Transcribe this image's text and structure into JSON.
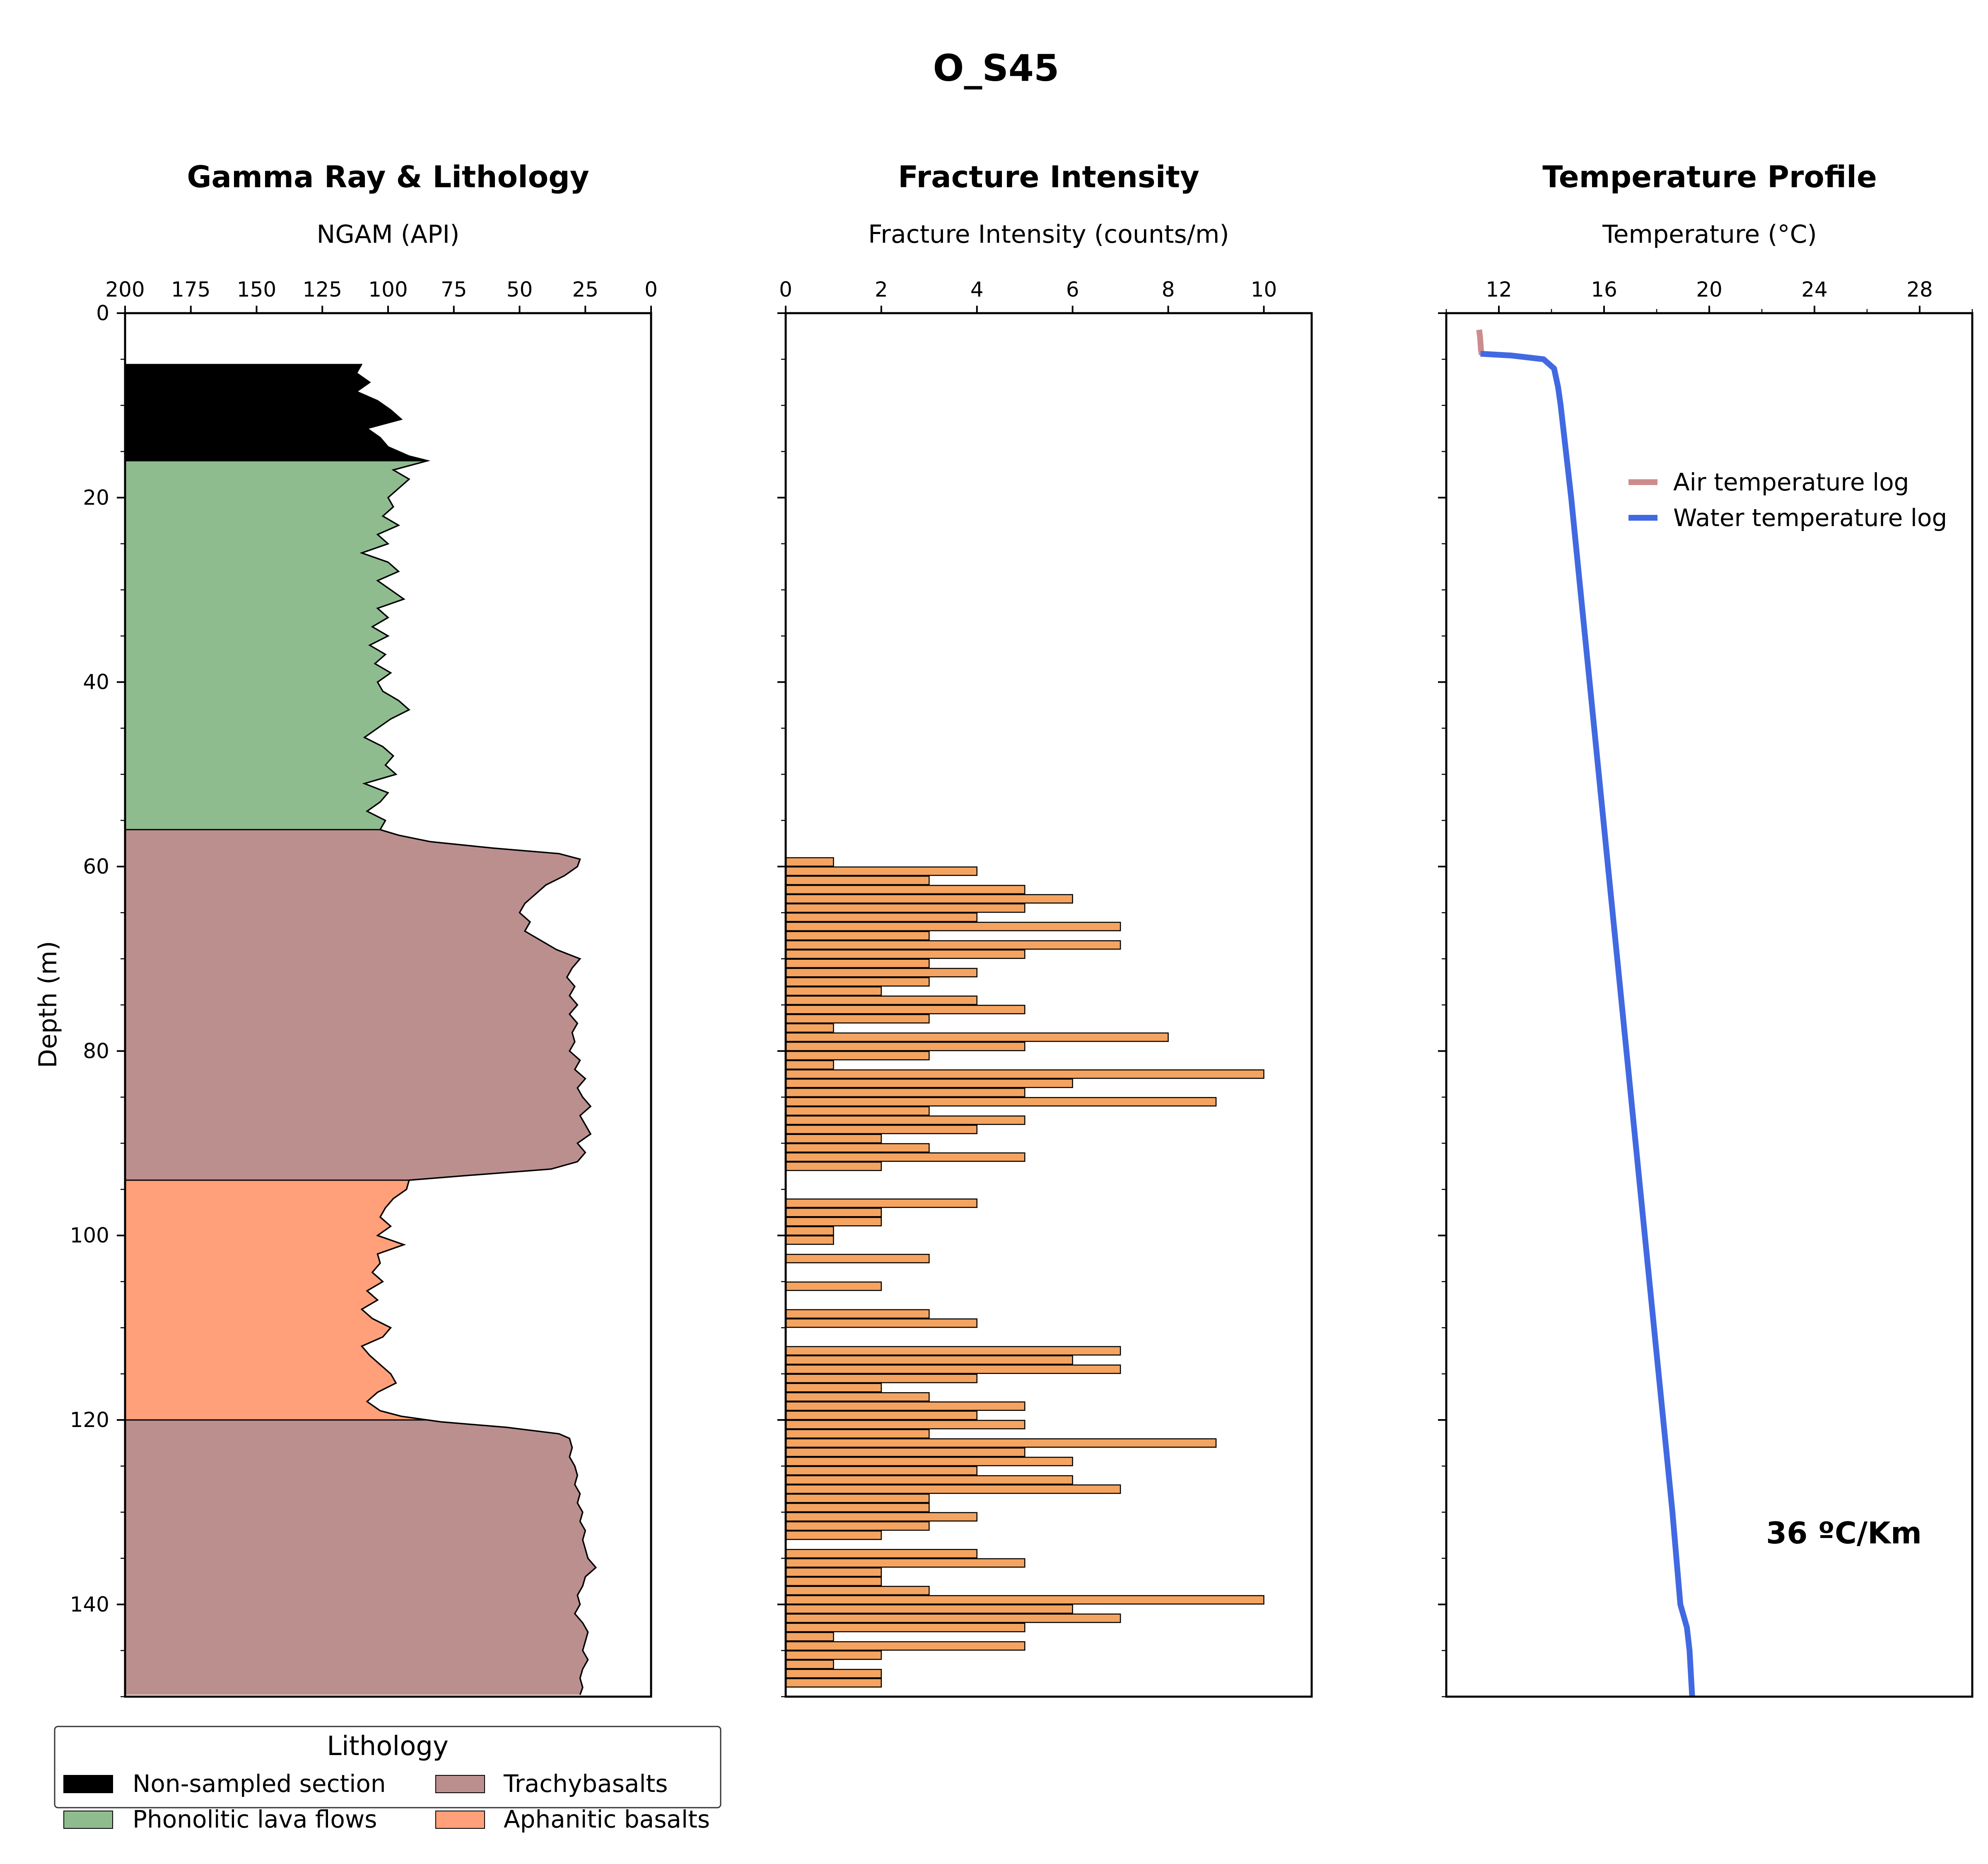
{
  "figure": {
    "title": "O_S45",
    "y_axis_label": "Depth (m)",
    "y_ticks": [
      0,
      20,
      40,
      60,
      80,
      100,
      120,
      140
    ]
  },
  "chart_data": [
    {
      "type": "area",
      "title": "Gamma Ray & Lithology",
      "xlabel": "NGAM (API)",
      "ylabel": "Depth (m)",
      "xlim": [
        200,
        0
      ],
      "ylim": [
        150,
        0
      ],
      "x_ticks": [
        200,
        175,
        150,
        125,
        100,
        75,
        50,
        25,
        0
      ],
      "x_inverted": true,
      "ngam_profile": [
        {
          "depth": 5.5,
          "api": 110
        },
        {
          "depth": 6.5,
          "api": 112
        },
        {
          "depth": 7.5,
          "api": 107
        },
        {
          "depth": 8.5,
          "api": 112
        },
        {
          "depth": 9.5,
          "api": 104
        },
        {
          "depth": 10.5,
          "api": 99
        },
        {
          "depth": 11.5,
          "api": 95
        },
        {
          "depth": 12.5,
          "api": 108
        },
        {
          "depth": 13.5,
          "api": 103
        },
        {
          "depth": 14.5,
          "api": 100
        },
        {
          "depth": 15.5,
          "api": 92
        },
        {
          "depth": 16.0,
          "api": 85
        },
        {
          "depth": 17.0,
          "api": 98
        },
        {
          "depth": 18.0,
          "api": 92
        },
        {
          "depth": 19.0,
          "api": 96
        },
        {
          "depth": 20.0,
          "api": 100
        },
        {
          "depth": 21.0,
          "api": 98
        },
        {
          "depth": 22.0,
          "api": 102
        },
        {
          "depth": 23.0,
          "api": 96
        },
        {
          "depth": 24.0,
          "api": 104
        },
        {
          "depth": 25.0,
          "api": 100
        },
        {
          "depth": 26.0,
          "api": 110
        },
        {
          "depth": 27.0,
          "api": 100
        },
        {
          "depth": 28.0,
          "api": 96
        },
        {
          "depth": 29.0,
          "api": 104
        },
        {
          "depth": 30.0,
          "api": 99
        },
        {
          "depth": 31.0,
          "api": 94
        },
        {
          "depth": 32.0,
          "api": 104
        },
        {
          "depth": 33.0,
          "api": 100
        },
        {
          "depth": 34.0,
          "api": 106
        },
        {
          "depth": 35.0,
          "api": 100
        },
        {
          "depth": 36.0,
          "api": 107
        },
        {
          "depth": 37.0,
          "api": 101
        },
        {
          "depth": 38.0,
          "api": 105
        },
        {
          "depth": 39.0,
          "api": 99
        },
        {
          "depth": 40.0,
          "api": 104
        },
        {
          "depth": 41.0,
          "api": 102
        },
        {
          "depth": 42.0,
          "api": 96
        },
        {
          "depth": 43.0,
          "api": 92
        },
        {
          "depth": 44.0,
          "api": 99
        },
        {
          "depth": 45.0,
          "api": 104
        },
        {
          "depth": 46.0,
          "api": 109
        },
        {
          "depth": 47.0,
          "api": 102
        },
        {
          "depth": 48.0,
          "api": 98
        },
        {
          "depth": 49.0,
          "api": 101
        },
        {
          "depth": 50.0,
          "api": 97
        },
        {
          "depth": 51.0,
          "api": 109
        },
        {
          "depth": 52.0,
          "api": 100
        },
        {
          "depth": 53.0,
          "api": 103
        },
        {
          "depth": 54.0,
          "api": 108
        },
        {
          "depth": 55.0,
          "api": 101
        },
        {
          "depth": 56.0,
          "api": 103
        },
        {
          "depth": 56.6,
          "api": 96
        },
        {
          "depth": 57.3,
          "api": 84
        },
        {
          "depth": 58.0,
          "api": 60
        },
        {
          "depth": 58.6,
          "api": 35
        },
        {
          "depth": 59.2,
          "api": 27
        },
        {
          "depth": 60.0,
          "api": 28
        },
        {
          "depth": 61.0,
          "api": 33
        },
        {
          "depth": 62.0,
          "api": 40
        },
        {
          "depth": 63.0,
          "api": 44
        },
        {
          "depth": 64.0,
          "api": 48
        },
        {
          "depth": 65.0,
          "api": 50
        },
        {
          "depth": 66.0,
          "api": 46
        },
        {
          "depth": 67.0,
          "api": 48
        },
        {
          "depth": 68.0,
          "api": 42
        },
        {
          "depth": 69.0,
          "api": 36
        },
        {
          "depth": 70.0,
          "api": 27
        },
        {
          "depth": 71.0,
          "api": 30
        },
        {
          "depth": 72.0,
          "api": 32
        },
        {
          "depth": 73.0,
          "api": 29
        },
        {
          "depth": 74.0,
          "api": 31
        },
        {
          "depth": 75.0,
          "api": 28
        },
        {
          "depth": 76.0,
          "api": 31
        },
        {
          "depth": 77.0,
          "api": 28
        },
        {
          "depth": 78.0,
          "api": 30
        },
        {
          "depth": 79.0,
          "api": 29
        },
        {
          "depth": 80.0,
          "api": 31
        },
        {
          "depth": 81.0,
          "api": 27
        },
        {
          "depth": 82.0,
          "api": 29
        },
        {
          "depth": 83.0,
          "api": 25
        },
        {
          "depth": 84.0,
          "api": 28
        },
        {
          "depth": 85.0,
          "api": 26
        },
        {
          "depth": 86.0,
          "api": 23
        },
        {
          "depth": 87.0,
          "api": 27
        },
        {
          "depth": 88.0,
          "api": 25
        },
        {
          "depth": 89.0,
          "api": 23
        },
        {
          "depth": 90.0,
          "api": 28
        },
        {
          "depth": 91.0,
          "api": 25
        },
        {
          "depth": 92.0,
          "api": 28
        },
        {
          "depth": 92.8,
          "api": 38
        },
        {
          "depth": 93.5,
          "api": 70
        },
        {
          "depth": 94.0,
          "api": 92
        },
        {
          "depth": 95.0,
          "api": 93
        },
        {
          "depth": 96.0,
          "api": 98
        },
        {
          "depth": 97.0,
          "api": 101
        },
        {
          "depth": 98.0,
          "api": 103
        },
        {
          "depth": 99.0,
          "api": 99
        },
        {
          "depth": 100.0,
          "api": 104
        },
        {
          "depth": 101.0,
          "api": 94
        },
        {
          "depth": 102.0,
          "api": 104
        },
        {
          "depth": 103.0,
          "api": 103
        },
        {
          "depth": 104.0,
          "api": 106
        },
        {
          "depth": 105.0,
          "api": 102
        },
        {
          "depth": 106.0,
          "api": 108
        },
        {
          "depth": 107.0,
          "api": 104
        },
        {
          "depth": 108.0,
          "api": 110
        },
        {
          "depth": 109.0,
          "api": 106
        },
        {
          "depth": 110.0,
          "api": 99
        },
        {
          "depth": 111.0,
          "api": 102
        },
        {
          "depth": 112.0,
          "api": 110
        },
        {
          "depth": 113.0,
          "api": 107
        },
        {
          "depth": 114.0,
          "api": 103
        },
        {
          "depth": 115.0,
          "api": 99
        },
        {
          "depth": 116.0,
          "api": 97
        },
        {
          "depth": 117.0,
          "api": 104
        },
        {
          "depth": 118.0,
          "api": 108
        },
        {
          "depth": 119.0,
          "api": 103
        },
        {
          "depth": 119.6,
          "api": 95
        },
        {
          "depth": 120.2,
          "api": 80
        },
        {
          "depth": 120.8,
          "api": 55
        },
        {
          "depth": 121.5,
          "api": 35
        },
        {
          "depth": 122.0,
          "api": 31
        },
        {
          "depth": 123.0,
          "api": 30
        },
        {
          "depth": 124.0,
          "api": 31
        },
        {
          "depth": 125.0,
          "api": 29
        },
        {
          "depth": 126.0,
          "api": 28
        },
        {
          "depth": 127.0,
          "api": 29
        },
        {
          "depth": 128.0,
          "api": 27
        },
        {
          "depth": 129.0,
          "api": 28
        },
        {
          "depth": 130.0,
          "api": 26
        },
        {
          "depth": 131.0,
          "api": 27
        },
        {
          "depth": 132.0,
          "api": 25
        },
        {
          "depth": 133.0,
          "api": 26
        },
        {
          "depth": 134.0,
          "api": 25
        },
        {
          "depth": 135.0,
          "api": 24
        },
        {
          "depth": 136.0,
          "api": 21
        },
        {
          "depth": 137.0,
          "api": 25
        },
        {
          "depth": 138.0,
          "api": 26
        },
        {
          "depth": 139.0,
          "api": 28
        },
        {
          "depth": 140.0,
          "api": 27
        },
        {
          "depth": 141.0,
          "api": 29
        },
        {
          "depth": 142.0,
          "api": 26
        },
        {
          "depth": 143.0,
          "api": 24
        },
        {
          "depth": 144.0,
          "api": 25
        },
        {
          "depth": 145.0,
          "api": 26
        },
        {
          "depth": 146.0,
          "api": 24
        },
        {
          "depth": 147.0,
          "api": 26
        },
        {
          "depth": 148.0,
          "api": 27
        },
        {
          "depth": 149.0,
          "api": 26
        },
        {
          "depth": 149.8,
          "api": 27
        }
      ],
      "lithology_intervals": [
        {
          "unit": "Non-sampled section",
          "top": 5.5,
          "bottom": 16.0
        },
        {
          "unit": "Phonolitic lava flows",
          "top": 16.0,
          "bottom": 56.0
        },
        {
          "unit": "Trachybasalts",
          "top": 56.0,
          "bottom": 94.0
        },
        {
          "unit": "Aphanitic basalts",
          "top": 94.0,
          "bottom": 120.0
        },
        {
          "unit": "Trachybasalts",
          "top": 120.0,
          "bottom": 149.8
        }
      ],
      "legend": {
        "title": "Lithology",
        "placement": "bottom-left",
        "entries": [
          {
            "label": "Non-sampled section",
            "color": "#000000"
          },
          {
            "label": "Phonolitic lava flows",
            "color": "#8fbc8f"
          },
          {
            "label": "Trachybasalts",
            "color": "#bc8f8f"
          },
          {
            "label": "Aphanitic basalts",
            "color": "#ffa07a"
          }
        ]
      }
    },
    {
      "type": "bar",
      "orientation": "horizontal",
      "title": "Fracture Intensity",
      "xlabel": "Fracture Intensity (counts/m)",
      "xlim": [
        0,
        11
      ],
      "ylim": [
        150,
        0
      ],
      "x_ticks": [
        0,
        2,
        4,
        6,
        8,
        10
      ],
      "bar_color": "#f4a460",
      "depth_bins": [
        59,
        60,
        61,
        62,
        63,
        64,
        65,
        66,
        67,
        68,
        69,
        70,
        71,
        72,
        73,
        74,
        75,
        76,
        77,
        78,
        79,
        80,
        81,
        82,
        83,
        84,
        85,
        86,
        87,
        88,
        89,
        90,
        91,
        92,
        96,
        97,
        98,
        99,
        100,
        102,
        105,
        108,
        109,
        112,
        113,
        114,
        115,
        116,
        117,
        118,
        119,
        120,
        121,
        122,
        123,
        124,
        125,
        126,
        127,
        128,
        129,
        130,
        131,
        132,
        133,
        134,
        135,
        136,
        137,
        138,
        139,
        140,
        141,
        142,
        143,
        144,
        145,
        146,
        147,
        148,
        149
      ],
      "values": [
        1,
        4,
        3,
        5,
        6,
        5,
        4,
        7,
        3,
        7,
        5,
        3,
        4,
        3,
        2,
        4,
        5,
        3,
        1,
        8,
        5,
        3,
        1,
        10,
        6,
        5,
        9,
        3,
        5,
        4,
        2,
        3,
        5,
        2,
        4,
        2,
        2,
        1,
        1,
        3,
        2,
        3,
        4,
        7,
        6,
        7,
        4,
        2,
        3,
        5,
        4,
        5,
        3,
        9,
        5,
        6,
        4,
        6,
        7,
        3,
        3,
        4,
        3,
        2,
        0,
        4,
        5,
        2,
        2,
        3,
        10,
        6,
        7,
        5,
        1,
        5,
        2,
        1,
        2,
        2,
        0
      ]
    },
    {
      "type": "line",
      "title": "Temperature Profile",
      "xlabel": "Temperature (°C)",
      "xlim": [
        10,
        30
      ],
      "ylim": [
        150,
        0
      ],
      "x_ticks": [
        12,
        16,
        20,
        24,
        28
      ],
      "series": [
        {
          "name": "Air temperature log",
          "color": "#cd8c8c",
          "depth": [
            1.8,
            2.5,
            3.2,
            4.0,
            4.5
          ],
          "temperature": [
            11.25,
            11.28,
            11.3,
            11.32,
            11.35
          ]
        },
        {
          "name": "Water temperature log",
          "color": "#4169e1",
          "depth": [
            4.4,
            4.6,
            5.0,
            6.0,
            8,
            10,
            15,
            20,
            30,
            40,
            50,
            60,
            70,
            80,
            90,
            100,
            110,
            120,
            130,
            140,
            141.5,
            142.5,
            145,
            150
          ],
          "temperature": [
            11.3,
            12.5,
            13.7,
            14.1,
            14.25,
            14.35,
            14.55,
            14.75,
            15.1,
            15.45,
            15.8,
            16.15,
            16.5,
            16.85,
            17.2,
            17.55,
            17.9,
            18.25,
            18.6,
            18.9,
            19.05,
            19.15,
            19.25,
            19.35
          ]
        }
      ],
      "legend": {
        "placement": "upper-right",
        "entries": [
          "Air temperature log",
          "Water temperature log"
        ]
      },
      "annotation": "36 ºC/Km"
    }
  ]
}
